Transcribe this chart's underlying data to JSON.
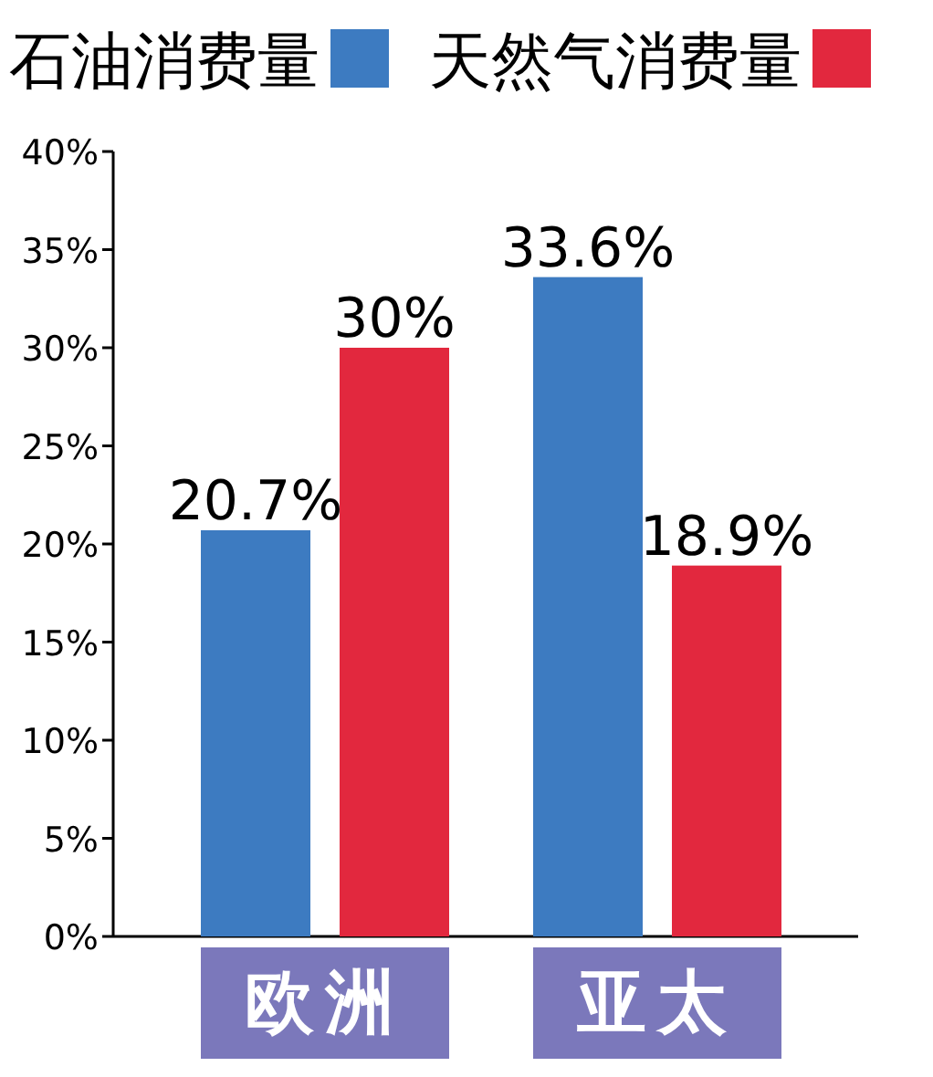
{
  "chart_data": {
    "type": "bar",
    "categories": [
      "欧洲",
      "亚太"
    ],
    "series": [
      {
        "name": "石油消费量",
        "color": "#3d7bc1",
        "values": [
          20.7,
          33.6
        ],
        "value_labels": [
          "20.7%",
          "33.6%"
        ]
      },
      {
        "name": "天然气消费量",
        "color": "#e2283e",
        "values": [
          30,
          18.9
        ],
        "value_labels": [
          "30%",
          "18.9%"
        ]
      }
    ],
    "ylim": [
      0,
      40
    ],
    "yticks": [
      {
        "value": 0,
        "label": "0%"
      },
      {
        "value": 5,
        "label": "5%"
      },
      {
        "value": 10,
        "label": "10%"
      },
      {
        "value": 15,
        "label": "15%"
      },
      {
        "value": 20,
        "label": "20%"
      },
      {
        "value": 25,
        "label": "25%"
      },
      {
        "value": 30,
        "label": "30%"
      },
      {
        "value": 35,
        "label": "35%"
      },
      {
        "value": 40,
        "label": "40%"
      }
    ],
    "legend": "top",
    "grid": false
  }
}
